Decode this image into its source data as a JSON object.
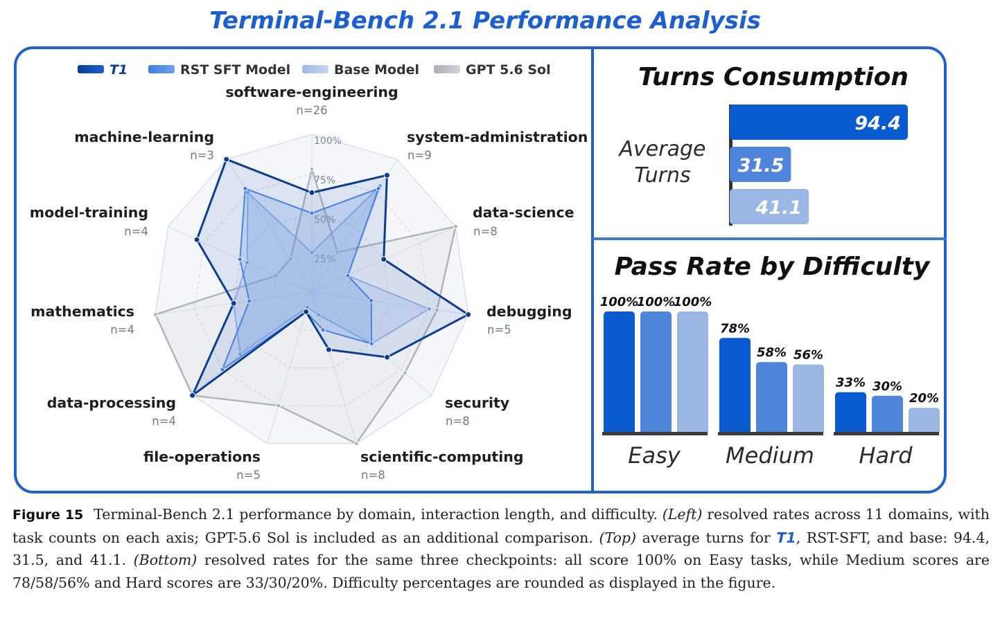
{
  "title": "Terminal-Bench 2.1 Performance Analysis",
  "colors": {
    "t1": "#0b3d91",
    "rst": "#3f7ee0",
    "base": "#9cb8e6",
    "gpt": "#b9bcc2",
    "accent": "#1d5fd0"
  },
  "chart_data": [
    {
      "type": "radar",
      "legend": [
        "T1",
        "RST SFT Model",
        "Base Model",
        "GPT 5.6 Sol"
      ],
      "legend_position": "top",
      "rings": [
        "25%",
        "50%",
        "75%",
        "100%"
      ],
      "axes": [
        {
          "name": "software-engineering",
          "n": "n=26"
        },
        {
          "name": "system-administration",
          "n": "n=9"
        },
        {
          "name": "data-science",
          "n": "n=8"
        },
        {
          "name": "debugging",
          "n": "n=5"
        },
        {
          "name": "security",
          "n": "n=8"
        },
        {
          "name": "scientific-computing",
          "n": "n=8"
        },
        {
          "name": "file-operations",
          "n": "n=5"
        },
        {
          "name": "data-processing",
          "n": "n=4"
        },
        {
          "name": "mathematics",
          "n": "n=4"
        },
        {
          "name": "model-training",
          "n": "n=4"
        },
        {
          "name": "machine-learning",
          "n": "n=3"
        }
      ],
      "series": [
        {
          "name": "GPT 5.6 Sol",
          "values": [
            0.78,
            0.3,
            1.0,
            0.8,
            0.78,
            1.0,
            0.75,
            1.0,
            1.0,
            0.25,
            0.25
          ]
        },
        {
          "name": "Base Model",
          "values": [
            0.25,
            0.8,
            0.25,
            0.75,
            0.5,
            0.15,
            0.1,
            0.6,
            0.5,
            0.45,
            0.75
          ]
        },
        {
          "name": "RST SFT Model",
          "values": [
            0.5,
            0.78,
            0.25,
            0.38,
            0.5,
            0.25,
            0.13,
            0.75,
            0.4,
            0.5,
            0.78
          ]
        },
        {
          "name": "T1",
          "values": [
            0.63,
            0.88,
            0.5,
            1.0,
            0.63,
            0.38,
            0.13,
            1.0,
            0.5,
            0.8,
            1.0
          ]
        }
      ]
    },
    {
      "type": "bar",
      "orientation": "horizontal",
      "title": "Turns Consumption",
      "ylabel": "Average Turns",
      "series": [
        {
          "name": "T1",
          "value": 94.4,
          "label": "94.4"
        },
        {
          "name": "RST SFT Model",
          "value": 31.5,
          "label": "31.5"
        },
        {
          "name": "Base Model",
          "value": 41.1,
          "label": "41.1"
        }
      ]
    },
    {
      "type": "bar",
      "title": "Pass Rate by Difficulty",
      "categories": [
        "Easy",
        "Medium",
        "Hard"
      ],
      "ylim": [
        0,
        100
      ],
      "series": [
        {
          "name": "T1",
          "values": [
            100,
            78,
            33
          ],
          "labels": [
            "100%",
            "78%",
            "33%"
          ]
        },
        {
          "name": "RST SFT Model",
          "values": [
            100,
            58,
            30
          ],
          "labels": [
            "100%",
            "58%",
            "30%"
          ]
        },
        {
          "name": "Base Model",
          "values": [
            100,
            56,
            20
          ],
          "labels": [
            "100%",
            "56%",
            "20%"
          ]
        }
      ]
    }
  ],
  "caption": {
    "figure_label": "Figure 15",
    "part1": "Terminal-Bench 2.1 performance by domain, interaction length, and difficulty.",
    "left_tag": "(Left)",
    "part2": "resolved rates across 11 domains, with task counts on each axis; GPT-5.6 Sol is included as an additional comparison.",
    "top_tag": "(Top)",
    "part3": "average turns for",
    "t1": "T1",
    "part4": ", RST-SFT, and base: 94.4, 31.5, and 41.1.",
    "bottom_tag": "(Bottom)",
    "part5": "resolved rates for the same three checkpoints: all score 100% on Easy tasks, while Medium scores are 78/58/56% and Hard scores are 33/30/20%. Difficulty percentages are rounded as displayed in the figure."
  }
}
